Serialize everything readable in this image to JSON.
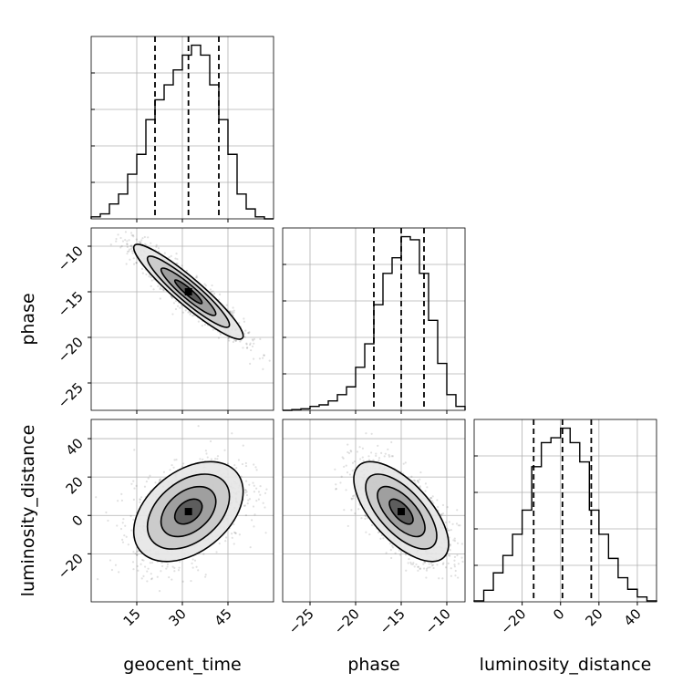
{
  "chart_data": {
    "type": "corner",
    "parameters": [
      "geocent_time",
      "phase",
      "luminosity_distance"
    ],
    "axis_labels": {
      "geocent_time": "geocent_time",
      "phase": "phase",
      "luminosity_distance": "luminosity_distance"
    },
    "ranges": {
      "geocent_time": [
        0,
        60
      ],
      "phase": [
        -28,
        -8
      ],
      "luminosity_distance": [
        -45,
        50
      ]
    },
    "ticks": {
      "geocent_time": [
        15,
        30,
        45
      ],
      "phase": [
        -25,
        -20,
        -15,
        -10
      ],
      "luminosity_distance": [
        -20,
        0,
        20,
        40
      ]
    },
    "tick_labels": {
      "geocent_time": [
        "15",
        "30",
        "45"
      ],
      "phase": [
        "−25",
        "−20",
        "−15",
        "−10"
      ],
      "luminosity_distance": [
        "−20",
        "0",
        "20",
        "40"
      ]
    },
    "histograms": {
      "geocent_time": {
        "bin_edges": [
          0,
          3,
          6,
          9,
          12,
          15,
          18,
          21,
          24,
          27,
          30,
          33,
          36,
          39,
          42,
          45,
          48,
          51,
          54,
          57,
          60
        ],
        "counts": [
          2,
          5,
          15,
          25,
          45,
          65,
          100,
          120,
          135,
          150,
          165,
          175,
          165,
          135,
          100,
          65,
          25,
          10,
          2,
          0
        ],
        "quantiles": [
          21,
          32,
          42
        ]
      },
      "phase": {
        "bin_edges": [
          -28,
          -27,
          -26,
          -25,
          -24,
          -23,
          -22,
          -21,
          -20,
          -19,
          -18,
          -17,
          -16,
          -15,
          -14,
          -13,
          -12,
          -11,
          -10,
          -9,
          -8
        ],
        "counts": [
          0,
          1,
          2,
          5,
          7,
          12,
          20,
          30,
          55,
          85,
          135,
          175,
          195,
          222,
          218,
          175,
          115,
          60,
          20,
          5
        ],
        "quantiles": [
          -18,
          -15,
          -12.5
        ]
      },
      "luminosity_distance": {
        "bin_edges": [
          -45,
          -40,
          -35,
          -30,
          -25,
          -20,
          -15,
          -10,
          -5,
          0,
          5,
          10,
          15,
          20,
          25,
          30,
          35,
          40,
          45,
          50
        ],
        "counts": [
          1,
          12,
          30,
          48,
          70,
          95,
          140,
          165,
          170,
          180,
          165,
          145,
          95,
          70,
          45,
          25,
          13,
          5,
          1
        ],
        "quantiles": [
          -14,
          1,
          16
        ]
      }
    },
    "density_2d": [
      {
        "x": "geocent_time",
        "y": "phase",
        "mean": [
          32,
          -15
        ],
        "std": [
          9,
          2.6
        ],
        "corr": -0.93
      },
      {
        "x": "geocent_time",
        "y": "luminosity_distance",
        "mean": [
          32,
          2
        ],
        "std": [
          9,
          13
        ],
        "corr": 0.4
      },
      {
        "x": "phase",
        "y": "luminosity_distance",
        "mean": [
          -15,
          2
        ],
        "std": [
          2.6,
          13
        ],
        "corr": -0.65
      }
    ],
    "grid": true,
    "colors": {
      "line": "#000000",
      "grid": "#b0b0b0",
      "scatter": "#000000"
    }
  }
}
